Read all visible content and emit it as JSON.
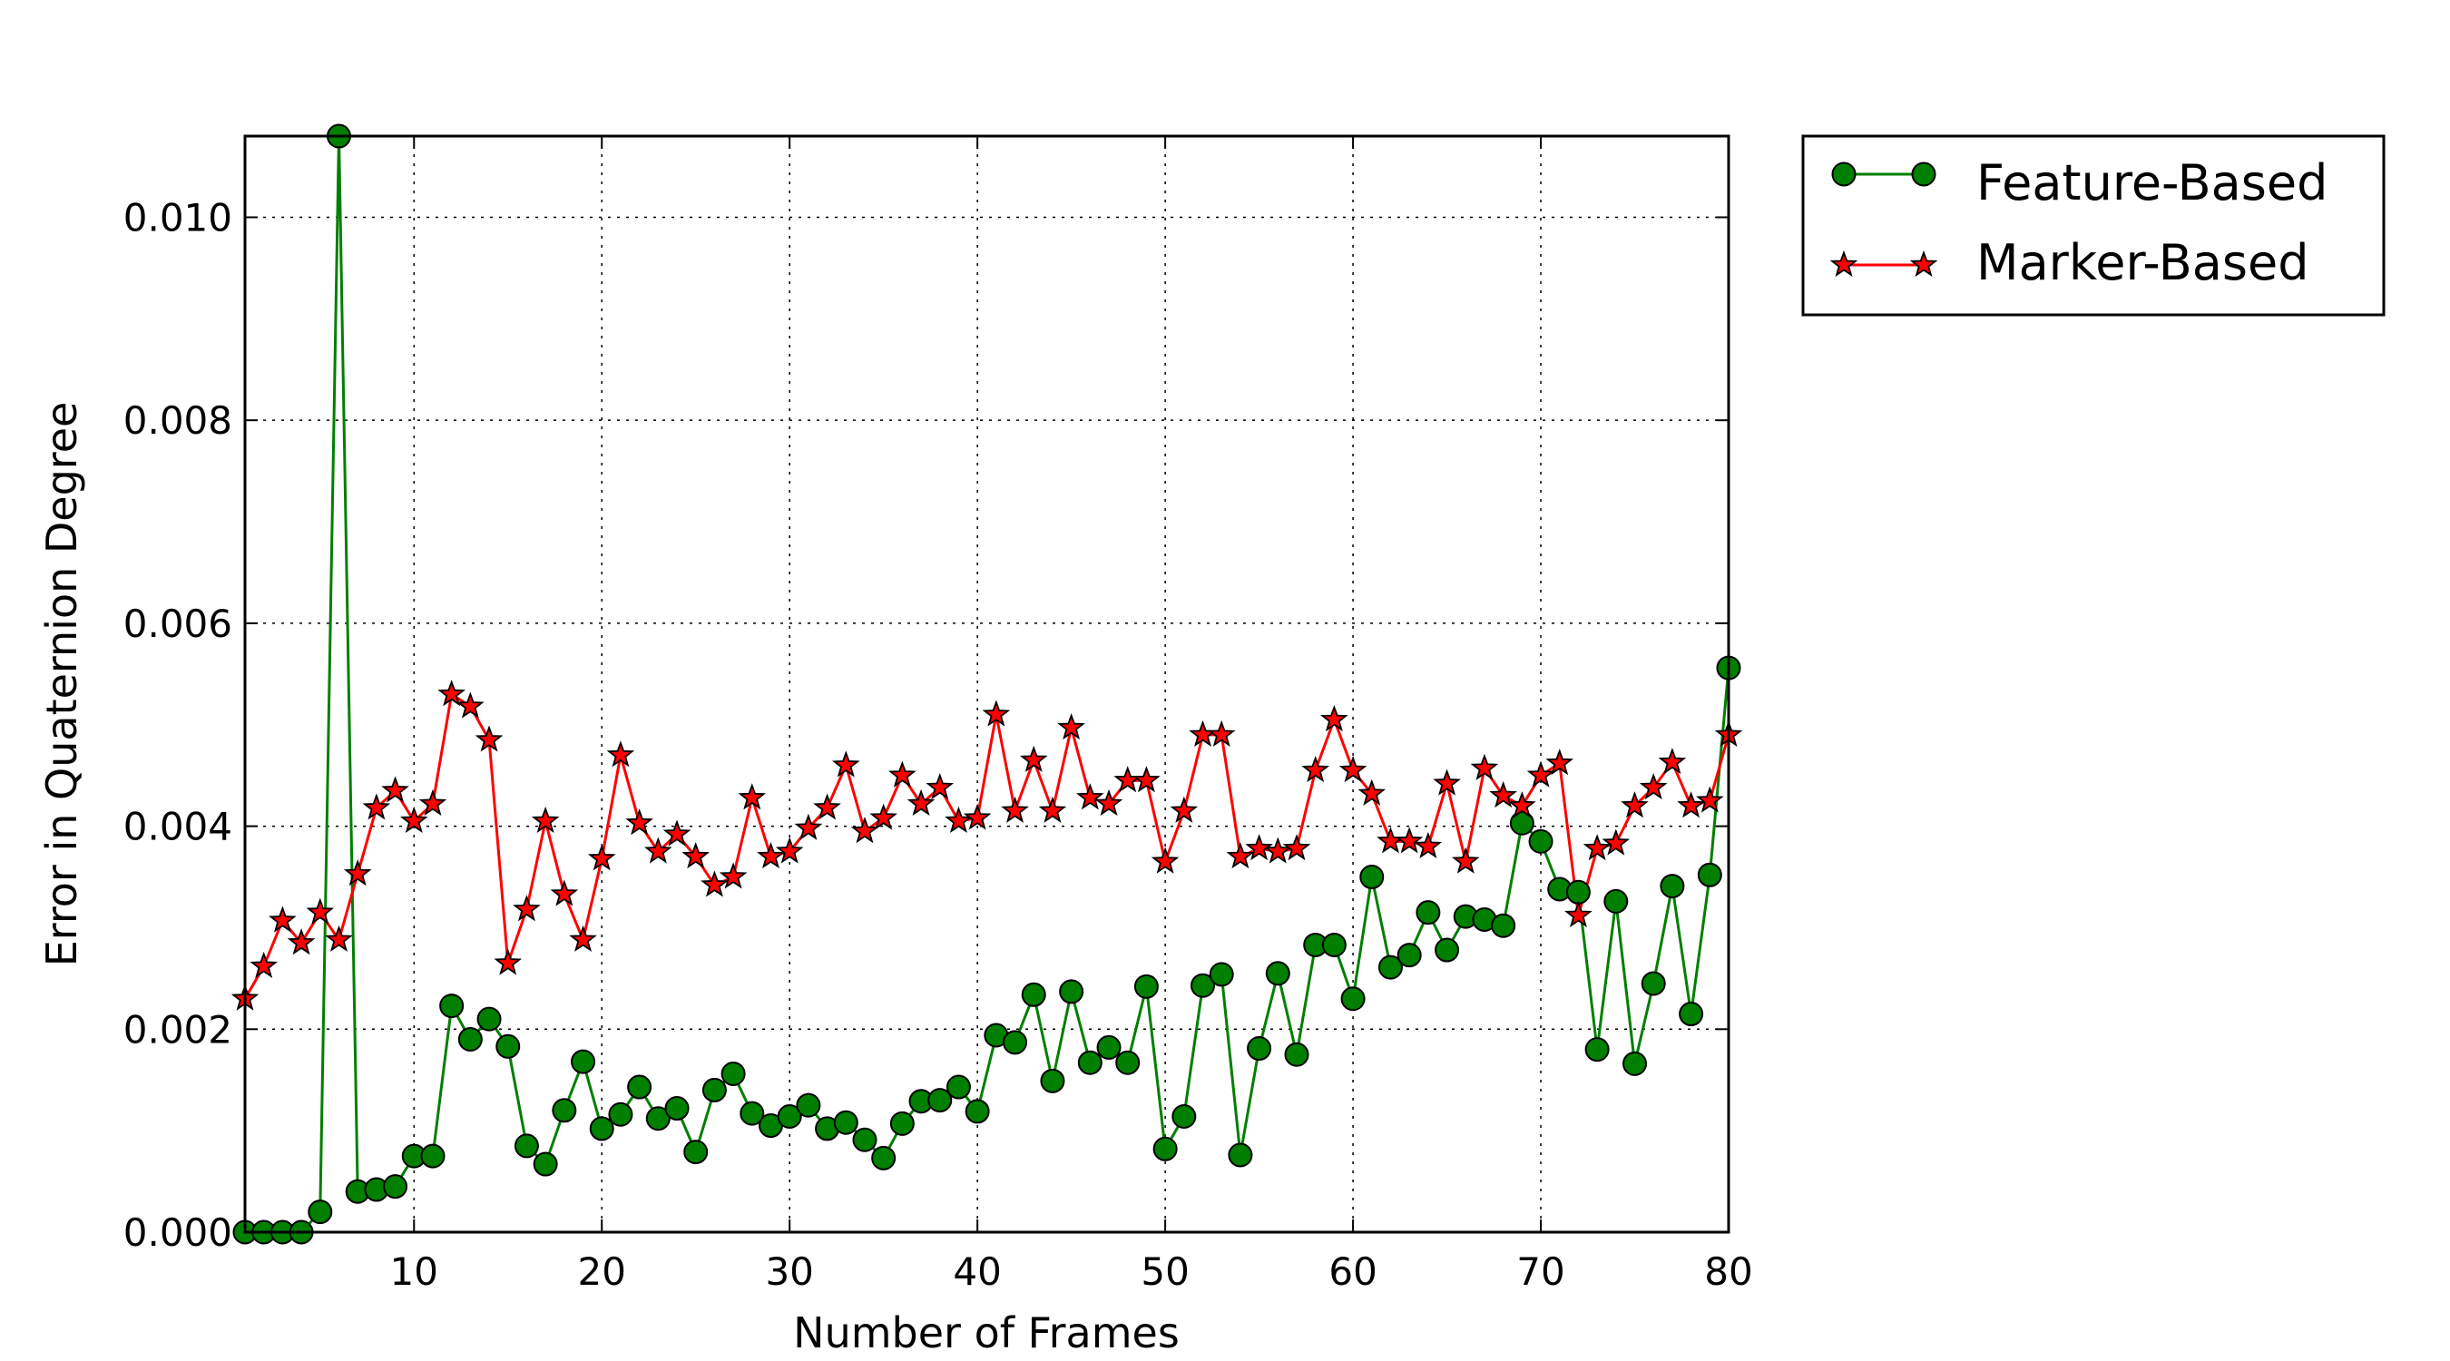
{
  "chart_data": {
    "type": "line",
    "title": "",
    "xlabel": "Number of Frames",
    "ylabel": "Error in Quaternion Degree",
    "xlim": [
      1,
      80
    ],
    "ylim": [
      0,
      0.0108
    ],
    "xticks": [
      10,
      20,
      30,
      40,
      50,
      60,
      70,
      80
    ],
    "xtick_labels": [
      "10",
      "20",
      "30",
      "40",
      "50",
      "60",
      "70",
      "80"
    ],
    "yticks": [
      0,
      0.002,
      0.004,
      0.006,
      0.008,
      0.01
    ],
    "ytick_labels": [
      "0.000",
      "0.002",
      "0.004",
      "0.006",
      "0.008",
      "0.010"
    ],
    "grid": true,
    "legend_position": "outside-top-right",
    "x": [
      1,
      2,
      3,
      4,
      5,
      6,
      7,
      8,
      9,
      10,
      11,
      12,
      13,
      14,
      15,
      16,
      17,
      18,
      19,
      20,
      21,
      22,
      23,
      24,
      25,
      26,
      27,
      28,
      29,
      30,
      31,
      32,
      33,
      34,
      35,
      36,
      37,
      38,
      39,
      40,
      41,
      42,
      43,
      44,
      45,
      46,
      47,
      48,
      49,
      50,
      51,
      52,
      53,
      54,
      55,
      56,
      57,
      58,
      59,
      60,
      61,
      62,
      63,
      64,
      65,
      66,
      67,
      68,
      69,
      70,
      71,
      72,
      73,
      74,
      75,
      76,
      77,
      78,
      79,
      80
    ],
    "series": [
      {
        "name": "Feature-Based",
        "color": "#007f00",
        "marker": "circle",
        "values": [
          0.0,
          0.0,
          0.0,
          0.0,
          0.0002,
          0.0108,
          0.0004,
          0.00042,
          0.00045,
          0.00075,
          0.00075,
          0.00223,
          0.0019,
          0.0021,
          0.00183,
          0.00085,
          0.00067,
          0.0012,
          0.00168,
          0.00102,
          0.00116,
          0.00143,
          0.00112,
          0.00122,
          0.00079,
          0.0014,
          0.00156,
          0.00117,
          0.00105,
          0.00114,
          0.00125,
          0.00102,
          0.00108,
          0.00091,
          0.00073,
          0.00107,
          0.00129,
          0.0013,
          0.00143,
          0.00119,
          0.00194,
          0.00187,
          0.00234,
          0.00149,
          0.00237,
          0.00167,
          0.00182,
          0.00167,
          0.00242,
          0.00082,
          0.00114,
          0.00243,
          0.00254,
          0.00076,
          0.00181,
          0.00255,
          0.00175,
          0.00283,
          0.00283,
          0.0023,
          0.0035,
          0.00261,
          0.00273,
          0.00315,
          0.00278,
          0.00311,
          0.00308,
          0.00302,
          0.00403,
          0.00385,
          0.00338,
          0.00335,
          0.0018,
          0.00326,
          0.00166,
          0.00245,
          0.00341,
          0.00215,
          0.00352,
          0.00556
        ]
      },
      {
        "name": "Marker-Based",
        "color": "#ff0000",
        "marker": "star",
        "values": [
          0.0023,
          0.00262,
          0.00307,
          0.00285,
          0.00315,
          0.00288,
          0.00353,
          0.00418,
          0.00435,
          0.00405,
          0.00422,
          0.0053,
          0.00518,
          0.00485,
          0.00265,
          0.00318,
          0.00405,
          0.00333,
          0.00288,
          0.00368,
          0.0047,
          0.00403,
          0.00375,
          0.00392,
          0.0037,
          0.00342,
          0.0035,
          0.00428,
          0.0037,
          0.00375,
          0.00398,
          0.00418,
          0.0046,
          0.00395,
          0.00408,
          0.0045,
          0.00422,
          0.00438,
          0.00405,
          0.00408,
          0.0051,
          0.00415,
          0.00465,
          0.00415,
          0.00497,
          0.00428,
          0.00422,
          0.00445,
          0.00445,
          0.00365,
          0.00415,
          0.0049,
          0.0049,
          0.0037,
          0.00378,
          0.00375,
          0.00378,
          0.00455,
          0.00505,
          0.00455,
          0.00432,
          0.00385,
          0.00385,
          0.0038,
          0.00442,
          0.00365,
          0.00457,
          0.0043,
          0.0042,
          0.0045,
          0.00462,
          0.00312,
          0.00378,
          0.00383,
          0.0042,
          0.00438,
          0.00463,
          0.0042,
          0.00425,
          0.0049
        ]
      }
    ]
  }
}
